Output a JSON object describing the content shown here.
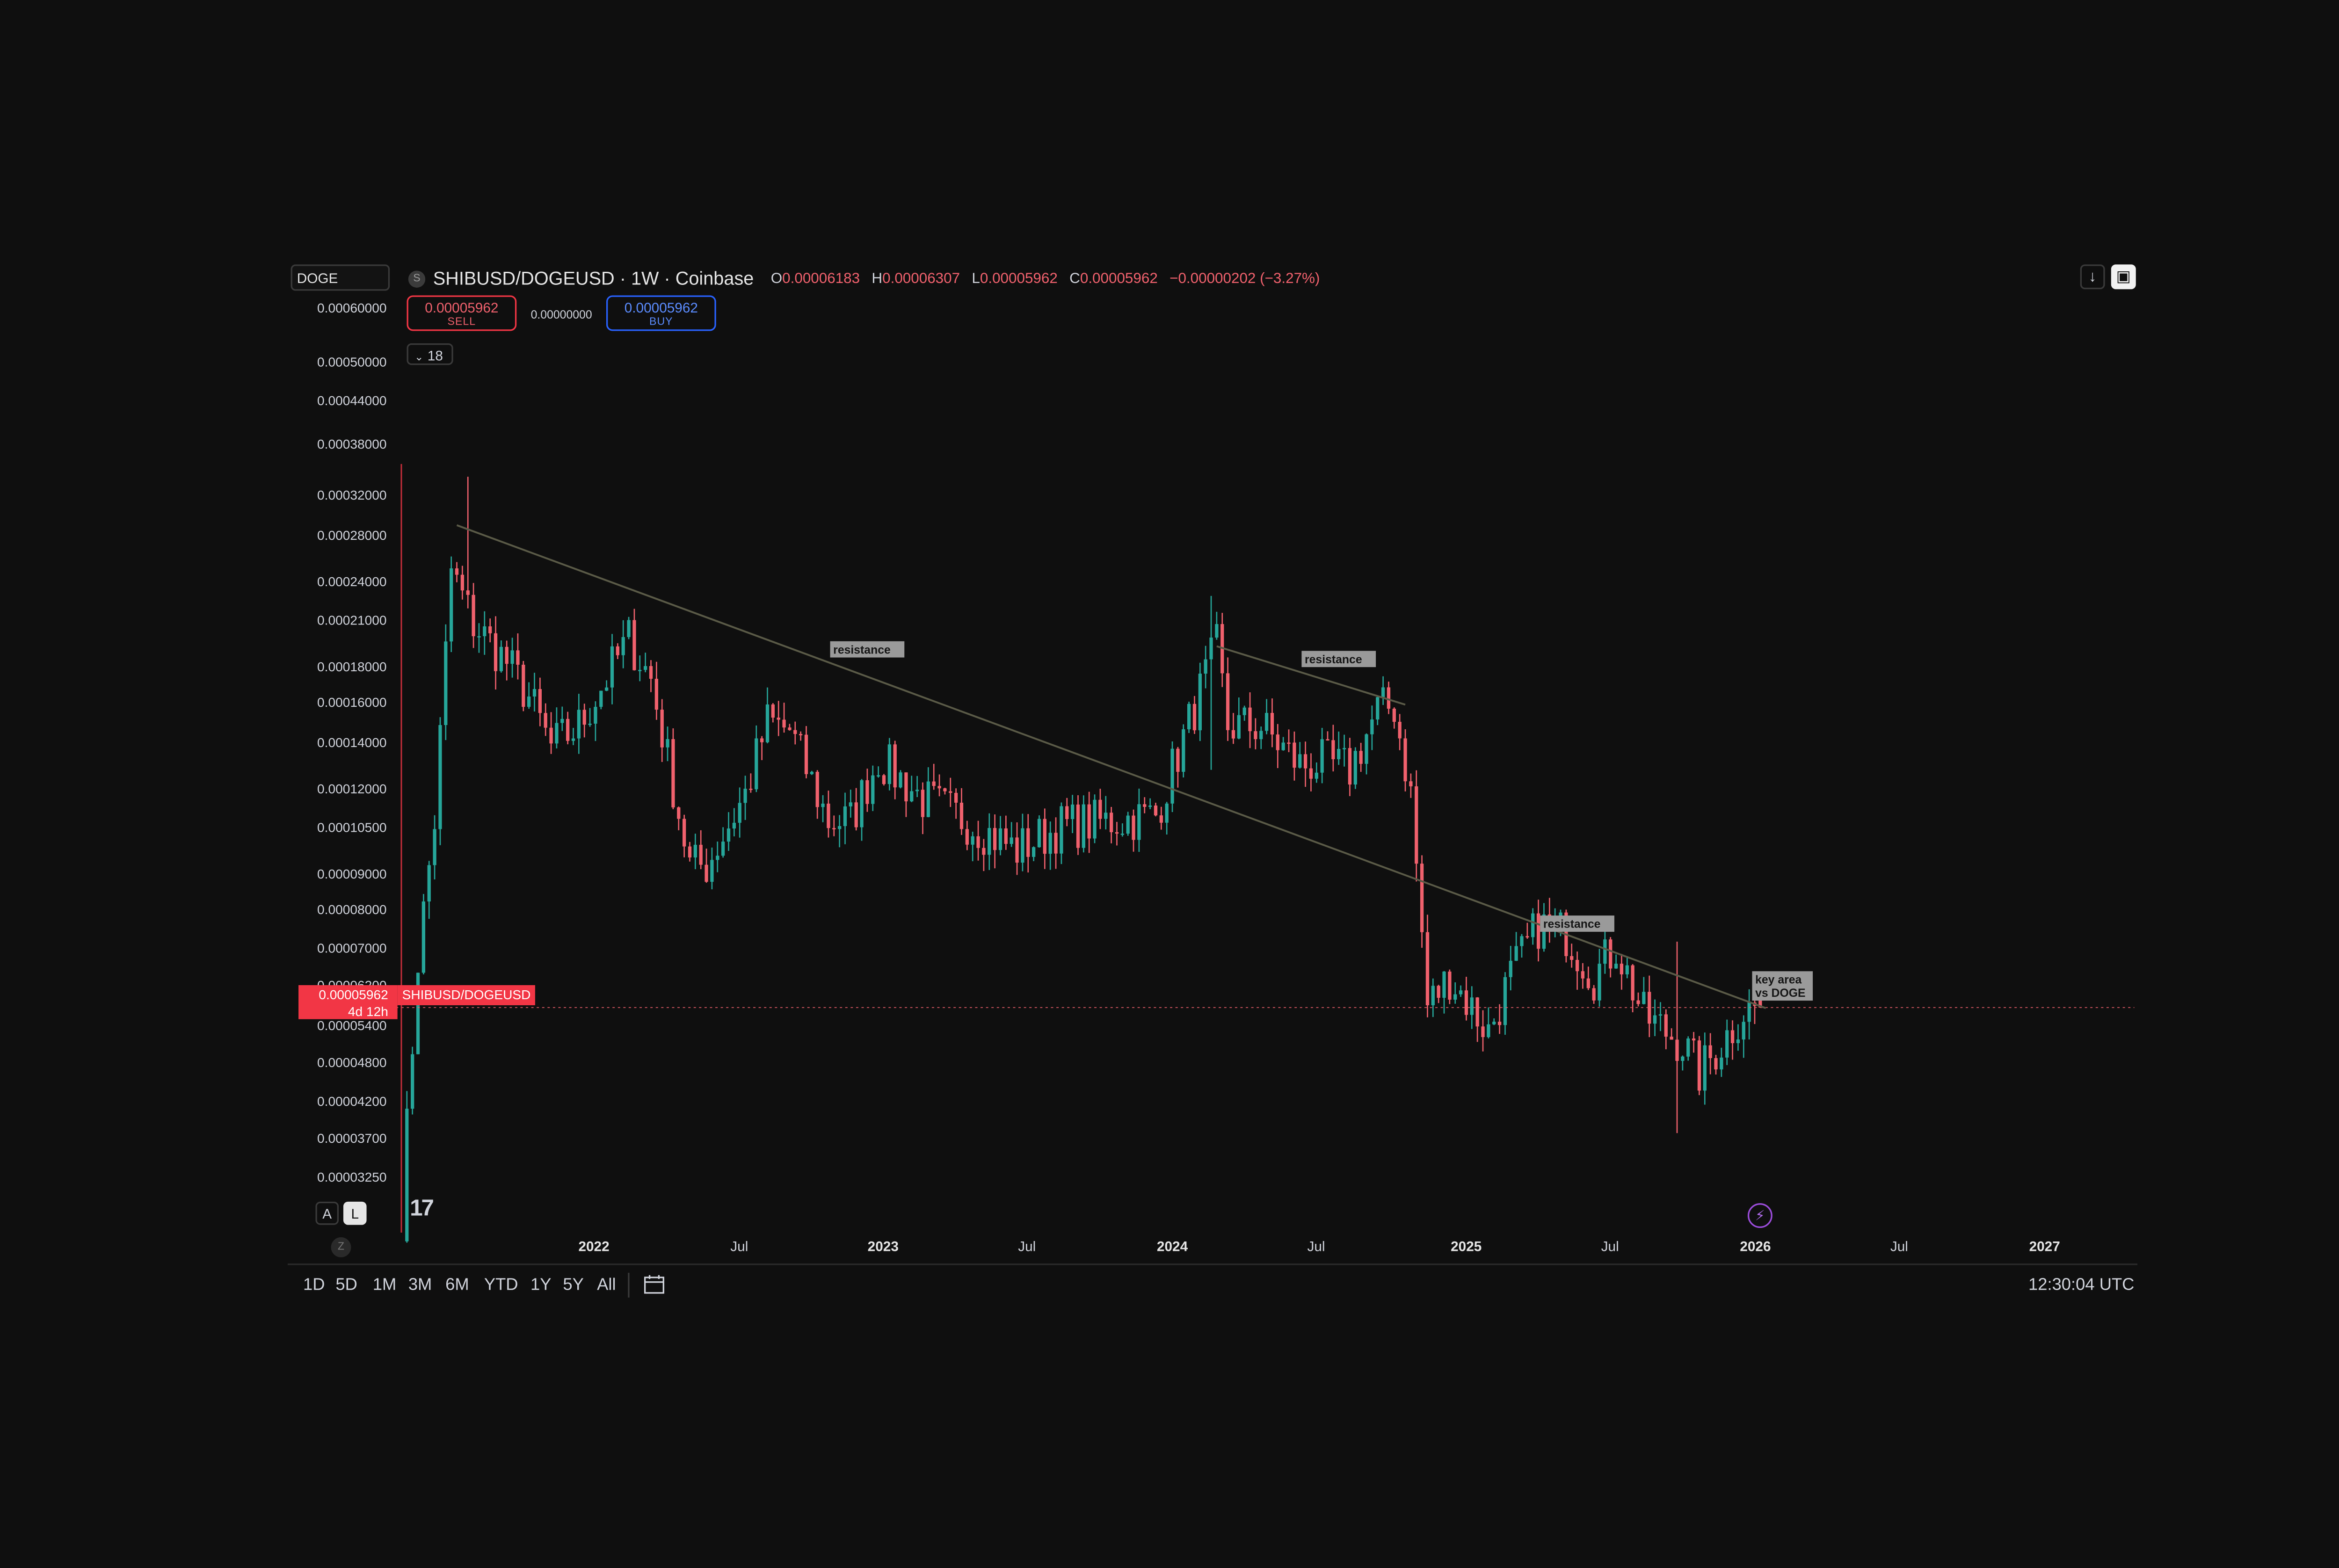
{
  "symbol_search": {
    "value": "DOGE"
  },
  "header": {
    "logo_letter": "S",
    "title": "SHIBUSD/DOGEUSD · 1W · Coinbase",
    "ohlc": [
      {
        "key": "O",
        "value": "0.00006183"
      },
      {
        "key": "H",
        "value": "0.00006307"
      },
      {
        "key": "L",
        "value": "0.00005962"
      },
      {
        "key": "C",
        "value": "0.00005962"
      }
    ],
    "change": "−0.00000202 (−3.27%)"
  },
  "trade": {
    "sell_price": "0.00005962",
    "sell_label": "SELL",
    "spread": "0.00000000",
    "buy_price": "0.00005962",
    "buy_label": "BUY"
  },
  "indicators_toggle": "18",
  "toolbar": {
    "download_icon": "download-icon",
    "fullscreen_icon": "fullscreen-icon"
  },
  "price_axis": {
    "labels": [
      "0.00060000",
      "0.00050000",
      "0.00044000",
      "0.00038000",
      "0.00032000",
      "0.00028000",
      "0.00024000",
      "0.00021000",
      "0.00018000",
      "0.00016000",
      "0.00014000",
      "0.00012000",
      "0.00010500",
      "0.00009000",
      "0.00008000",
      "0.00007000",
      "0.00006200",
      "0.00005400",
      "0.00004800",
      "0.00004200",
      "0.00003700",
      "0.00003250"
    ],
    "current_price": "0.00005962",
    "countdown": "4d 12h",
    "current_symbol": "SHIBUSD/DOGEUSD"
  },
  "time_axis": {
    "labels": [
      {
        "text": "2022",
        "strong": true
      },
      {
        "text": "Jul",
        "strong": false
      },
      {
        "text": "2023",
        "strong": true
      },
      {
        "text": "Jul",
        "strong": false
      },
      {
        "text": "2024",
        "strong": true
      },
      {
        "text": "Jul",
        "strong": false
      },
      {
        "text": "2025",
        "strong": true
      },
      {
        "text": "Jul",
        "strong": false
      },
      {
        "text": "2026",
        "strong": true
      },
      {
        "text": "Jul",
        "strong": false
      },
      {
        "text": "2027",
        "strong": true
      }
    ]
  },
  "scale_buttons": {
    "auto": "A",
    "log": "L"
  },
  "zoom_label": "Z",
  "brand_logo": "17",
  "ranges": [
    "1D",
    "5D",
    "1M",
    "3M",
    "6M",
    "YTD",
    "1Y",
    "5Y",
    "All"
  ],
  "clock": "12:30:04 UTC",
  "colors": {
    "up": "#26a69a",
    "down": "#f0616d",
    "trendline": "#5a5a47",
    "background": "#0f0f0f",
    "note_bg": "#9a9a9a"
  },
  "chart_data": {
    "type": "candlestick",
    "interval": "1W",
    "exchange": "Coinbase",
    "y_scale": "log",
    "ylim": [
      2.85e-05,
      0.00061
    ],
    "xlim": [
      "2021-04-20",
      "2027-02-01"
    ],
    "grid": false,
    "anchors": [
      [
        "2021-05-03",
        3e-05
      ],
      [
        "2021-05-10",
        4e-05
      ],
      [
        "2021-05-24",
        7e-05
      ],
      [
        "2021-06-14",
        0.00011
      ],
      [
        "2021-07-05",
        0.00025
      ],
      [
        "2021-08-02",
        0.00021
      ],
      [
        "2021-09-13",
        0.000185
      ],
      [
        "2021-10-11",
        0.000165
      ],
      [
        "2021-11-08",
        0.00014
      ],
      [
        "2021-12-13",
        0.00015
      ],
      [
        "2022-02-14",
        0.0002
      ],
      [
        "2022-03-14",
        0.000175
      ],
      [
        "2022-05-02",
        9.5e-05
      ],
      [
        "2022-05-23",
        9.5e-05
      ],
      [
        "2022-07-11",
        0.00012
      ],
      [
        "2022-08-08",
        0.000152
      ],
      [
        "2022-09-05",
        0.000148
      ],
      [
        "2022-10-24",
        0.00011
      ],
      [
        "2022-11-21",
        0.00011
      ],
      [
        "2022-12-26",
        0.000135
      ],
      [
        "2023-02-20",
        0.000118
      ],
      [
        "2023-04-17",
        0.00011
      ],
      [
        "2023-06-19",
        0.0001
      ],
      [
        "2023-08-14",
        0.000108
      ],
      [
        "2023-10-16",
        0.00011
      ],
      [
        "2023-12-11",
        0.000112
      ],
      [
        "2024-02-26",
        0.000195
      ],
      [
        "2024-03-11",
        0.00015
      ],
      [
        "2024-04-22",
        0.00015
      ],
      [
        "2024-06-10",
        0.000132
      ],
      [
        "2024-07-08",
        0.000133
      ],
      [
        "2024-08-12",
        0.00013
      ],
      [
        "2024-09-16",
        0.000158
      ],
      [
        "2024-10-07",
        0.00016
      ],
      [
        "2024-10-28",
        0.00012
      ],
      [
        "2024-11-18",
        6e-05
      ],
      [
        "2024-12-16",
        6.6e-05
      ],
      [
        "2025-02-03",
        5.5e-05
      ],
      [
        "2025-03-03",
        6.6e-05
      ],
      [
        "2025-04-07",
        7.8e-05
      ],
      [
        "2025-05-12",
        7.6e-05
      ],
      [
        "2025-06-16",
        6.6e-05
      ],
      [
        "2025-07-14",
        7.3e-05
      ],
      [
        "2025-08-18",
        5.8e-05
      ],
      [
        "2025-10-06",
        5.3e-05
      ],
      [
        "2025-10-27",
        4.8e-05
      ],
      [
        "2025-11-24",
        5.3e-05
      ],
      [
        "2025-12-22",
        5.9e-05
      ],
      [
        "2026-01-12",
        5.96e-05
      ]
    ],
    "spikes": [
      [
        "2021-05-03",
        0.00042,
        2.95e-05
      ],
      [
        "2021-07-26",
        0.00034,
        0.00024
      ],
      [
        "2024-02-19",
        0.00023,
        0.00013
      ],
      [
        "2025-09-29",
        7.4e-05,
        3.95e-05
      ],
      [
        "2026-01-05",
        6.55e-05,
        5.85e-05
      ]
    ],
    "last": {
      "open": 6.183e-05,
      "high": 6.307e-05,
      "low": 5.962e-05,
      "close": 5.962e-05
    },
    "trendlines": [
      {
        "from": [
          "2021-07-12",
          0.00029
        ],
        "to": [
          "2026-01-19",
          5.95e-05
        ]
      },
      {
        "from": [
          "2024-02-26",
          0.000195
        ],
        "to": [
          "2024-10-21",
          0.000161
        ]
      }
    ],
    "annotations": [
      {
        "text": "resistance",
        "at": [
          "2022-12-12",
          0.000193
        ]
      },
      {
        "text": "resistance",
        "at": [
          "2024-07-29",
          0.000187
        ]
      },
      {
        "text": "resistance",
        "at": [
          "2025-05-26",
          7.85e-05
        ]
      },
      {
        "text": "key area\nvs DOGE",
        "at": [
          "2026-02-09",
          6.4e-05
        ]
      }
    ]
  }
}
